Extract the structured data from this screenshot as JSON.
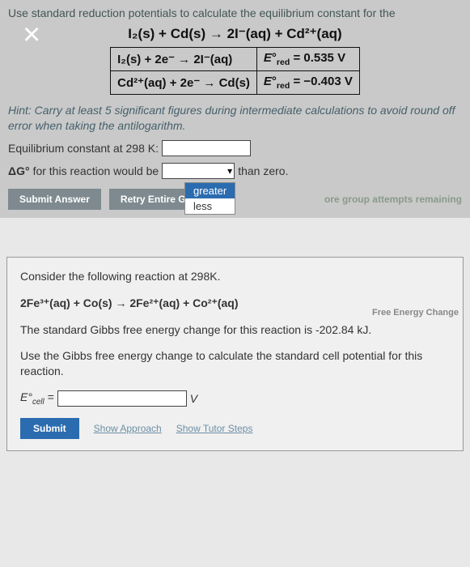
{
  "top": {
    "prompt": "Use standard reduction potentials to calculate the equilibrium constant for the",
    "main_equation": "I₂(s) + Cd(s) → 2I⁻(aq) + Cd²⁺(aq)",
    "rows": [
      {
        "rxn": "I₂(s) + 2e⁻ → 2I⁻(aq)",
        "label": "E°red",
        "val": "= 0.535 V"
      },
      {
        "rxn": "Cd²⁺(aq) + 2e⁻ → Cd(s)",
        "label": "E°red",
        "val": "= −0.403 V"
      }
    ],
    "hint": "Hint: Carry at least 5 significant figures during intermediate calculations to avoid round off error when taking the antilogarithm.",
    "eq_const_label": "Equilibrium constant at 298 K:",
    "dg_label_pre": "ΔG°",
    "dg_label_mid": " for this reaction would be ",
    "dg_label_post": " than zero.",
    "submit": "Submit Answer",
    "retry": "Retry Entire Group",
    "options": [
      "greater",
      "less"
    ],
    "remaining": "ore group attempts remaining"
  },
  "gap_label": "Free Energy Change",
  "bottom": {
    "line1": "Consider the following reaction at 298K.",
    "equation": "2Fe³⁺(aq) + Co(s) → 2Fe²⁺(aq) + Co²⁺(aq)",
    "line2": "The standard Gibbs free energy change for this reaction is -202.84 kJ.",
    "line3": "Use the Gibbs free energy change to calculate the standard cell potential for this reaction.",
    "ecell_label": "E°cell =",
    "unit": "V",
    "submit": "Submit",
    "approach": "Show Approach",
    "tutor": "Show Tutor Steps"
  },
  "colors": {
    "top_bg": "#c9c9c9",
    "bottom_bg": "#f0f0f0",
    "btn_gray": "#7e8a8f",
    "btn_blue": "#2b6cb0"
  }
}
